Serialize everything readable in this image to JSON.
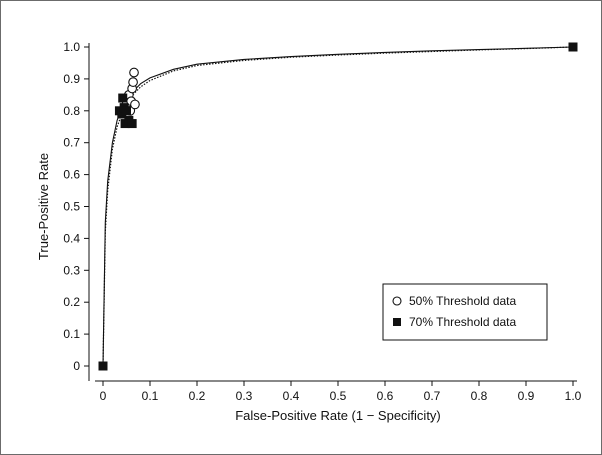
{
  "chart_data": {
    "type": "scatter",
    "title": "",
    "xlabel": "False-Positive Rate (1 − Specificity)",
    "ylabel": "True-Positive Rate",
    "xlim": [
      0,
      1.0
    ],
    "ylim": [
      0,
      1.0
    ],
    "x_ticks": [
      "0",
      "0.1",
      "0.2",
      "0.3",
      "0.4",
      "0.5",
      "0.6",
      "0.7",
      "0.8",
      "0.9",
      "1.0"
    ],
    "y_ticks": [
      "0",
      "0.1",
      "0.2",
      "0.3",
      "0.4",
      "0.5",
      "0.6",
      "0.7",
      "0.8",
      "0.9",
      "1.0"
    ],
    "grid": false,
    "legend_position": "lower-right",
    "series": [
      {
        "name": "50% Threshold data",
        "marker": "open-circle",
        "points": [
          {
            "x": 0.045,
            "y": 0.8
          },
          {
            "x": 0.05,
            "y": 0.82
          },
          {
            "x": 0.055,
            "y": 0.85
          },
          {
            "x": 0.058,
            "y": 0.8
          },
          {
            "x": 0.06,
            "y": 0.83
          },
          {
            "x": 0.062,
            "y": 0.87
          },
          {
            "x": 0.064,
            "y": 0.89
          },
          {
            "x": 0.066,
            "y": 0.92
          },
          {
            "x": 0.068,
            "y": 0.82
          }
        ]
      },
      {
        "name": "70% Threshold data",
        "marker": "filled-square",
        "points": [
          {
            "x": 0.0,
            "y": 0.0
          },
          {
            "x": 0.035,
            "y": 0.8
          },
          {
            "x": 0.04,
            "y": 0.79
          },
          {
            "x": 0.042,
            "y": 0.84
          },
          {
            "x": 0.045,
            "y": 0.81
          },
          {
            "x": 0.047,
            "y": 0.76
          },
          {
            "x": 0.05,
            "y": 0.8
          },
          {
            "x": 0.055,
            "y": 0.77
          },
          {
            "x": 0.062,
            "y": 0.76
          },
          {
            "x": 1.0,
            "y": 1.0
          }
        ]
      }
    ],
    "curves": [
      {
        "series": "50% Threshold data",
        "style": "dotted",
        "points": [
          [
            0,
            0
          ],
          [
            0.005,
            0.42
          ],
          [
            0.01,
            0.55
          ],
          [
            0.02,
            0.68
          ],
          [
            0.03,
            0.75
          ],
          [
            0.04,
            0.79
          ],
          [
            0.05,
            0.82
          ],
          [
            0.06,
            0.845
          ],
          [
            0.08,
            0.875
          ],
          [
            0.1,
            0.895
          ],
          [
            0.15,
            0.925
          ],
          [
            0.2,
            0.942
          ],
          [
            0.3,
            0.958
          ],
          [
            0.4,
            0.968
          ],
          [
            0.5,
            0.975
          ],
          [
            0.6,
            0.981
          ],
          [
            0.7,
            0.986
          ],
          [
            0.8,
            0.991
          ],
          [
            0.9,
            0.995
          ],
          [
            1.0,
            1.0
          ]
        ]
      },
      {
        "series": "70% Threshold data",
        "style": "solid",
        "points": [
          [
            0,
            0
          ],
          [
            0.005,
            0.45
          ],
          [
            0.01,
            0.58
          ],
          [
            0.02,
            0.7
          ],
          [
            0.03,
            0.77
          ],
          [
            0.04,
            0.81
          ],
          [
            0.05,
            0.835
          ],
          [
            0.06,
            0.855
          ],
          [
            0.08,
            0.885
          ],
          [
            0.1,
            0.903
          ],
          [
            0.15,
            0.93
          ],
          [
            0.2,
            0.946
          ],
          [
            0.3,
            0.961
          ],
          [
            0.4,
            0.97
          ],
          [
            0.5,
            0.977
          ],
          [
            0.6,
            0.983
          ],
          [
            0.7,
            0.988
          ],
          [
            0.8,
            0.992
          ],
          [
            0.9,
            0.996
          ],
          [
            1.0,
            1.0
          ]
        ]
      }
    ]
  },
  "legend": {
    "items": [
      {
        "label": "50% Threshold data",
        "symbol": "open-circle"
      },
      {
        "label": "70% Threshold data",
        "symbol": "filled-square"
      }
    ]
  }
}
